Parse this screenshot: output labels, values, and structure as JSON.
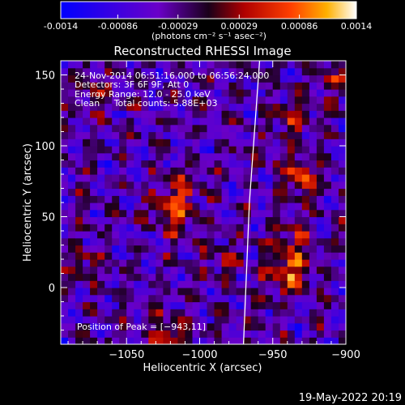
{
  "colorbar": {
    "tick_labels": [
      "-0.0014",
      "-0.00086",
      "-0.00029",
      "0.00029",
      "0.00086",
      "0.0014"
    ],
    "units_label": "(photons cm⁻² s⁻¹ asec⁻²)",
    "range": [
      -0.0014,
      0.0014
    ]
  },
  "chart_data": {
    "type": "heatmap",
    "title": "Reconstructed RHESSI Image",
    "xlabel": "Heliocentric X (arcsec)",
    "ylabel": "Heliocentric Y (arcsec)",
    "xlim": [
      -1095,
      -900
    ],
    "ylim": [
      -40,
      160
    ],
    "xticks": [
      -1050,
      -1000,
      -950,
      -900
    ],
    "xtick_labels": [
      "−1050",
      "−1000",
      "−950",
      "−900"
    ],
    "yticks": [
      0,
      50,
      100,
      150
    ],
    "ytick_labels": [
      "0",
      "50",
      "100",
      "150"
    ],
    "limb_line": [
      [
        -970,
        -40
      ],
      [
        -966,
        60
      ],
      [
        -959,
        160
      ]
    ],
    "hotspots": [
      {
        "x": -1018,
        "y": 52,
        "value": 0.0011
      },
      {
        "x": -1012,
        "y": 70,
        "value": 0.0009
      },
      {
        "x": -940,
        "y": 8,
        "value": 0.0014
      },
      {
        "x": -936,
        "y": 30,
        "value": 0.001
      },
      {
        "x": -932,
        "y": 80,
        "value": 0.0012
      },
      {
        "x": -938,
        "y": 118,
        "value": 0.0008
      },
      {
        "x": -1020,
        "y": -32,
        "value": 0.001
      },
      {
        "x": -912,
        "y": 150,
        "value": 0.0008
      },
      {
        "x": -1080,
        "y": 16,
        "value": 0.0007
      },
      {
        "x": -1072,
        "y": 140,
        "value": 0.0006
      },
      {
        "x": -985,
        "y": 22,
        "value": 0.0006
      }
    ],
    "annotations": [
      "24-Nov-2014 06:51:16.000 to 06:56:24.000",
      "Detectors: 3F 6F 9F, Att 0",
      "Energy Range: 12.0 - 25.0 keV",
      "Clean     Total counts: 5.88E+03",
      "Position of Peak = [−943,11]"
    ]
  },
  "footer": {
    "timestamp": "19-May-2022 20:19"
  }
}
